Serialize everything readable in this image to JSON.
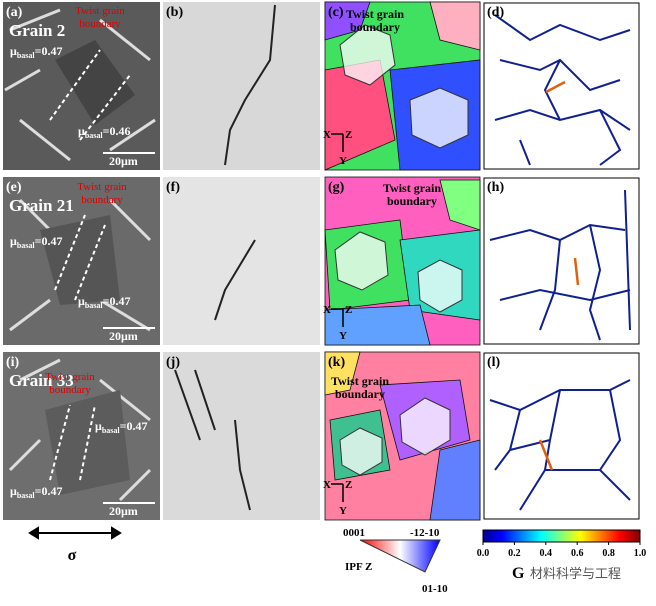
{
  "panels": [
    {
      "label": "(a)",
      "grain": "Grain 2",
      "boundary": [
        "Twist grain",
        "boundary"
      ],
      "mu": [
        {
          "symbol": "μ",
          "sub": "basal",
          "text": "=0.47"
        },
        {
          "symbol": "μ",
          "sub": "basal",
          "text": "=0.46"
        }
      ],
      "scale": "20μm"
    },
    {
      "label": "(b)"
    },
    {
      "label": "(c)",
      "boundary": [
        "Twist grain",
        "boundary"
      ],
      "axes": {
        "x": "X",
        "z": "Z",
        "y": "Y"
      }
    },
    {
      "label": "(d)"
    },
    {
      "label": "(e)",
      "grain": "Grain 21",
      "boundary": [
        "Twist grain",
        "boundary"
      ],
      "mu": [
        {
          "symbol": "μ",
          "sub": "basal",
          "text": "=0.47"
        },
        {
          "symbol": "μ",
          "sub": "basal",
          "text": "=0.47"
        }
      ],
      "scale": "20μm"
    },
    {
      "label": "(f)"
    },
    {
      "label": "(g)",
      "boundary": [
        "Twist grain",
        "boundary"
      ],
      "axes": {
        "x": "X",
        "z": "Z",
        "y": "Y"
      }
    },
    {
      "label": "(h)"
    },
    {
      "label": "(i)",
      "grain": "Grain 33",
      "boundary": [
        "Twist grain",
        "boundary"
      ],
      "mu": [
        {
          "symbol": "μ",
          "sub": "basal",
          "text": "=0.47"
        },
        {
          "symbol": "μ",
          "sub": "basal",
          "text": "=0.47"
        }
      ],
      "scale": "20μm"
    },
    {
      "label": "(j)"
    },
    {
      "label": "(k)",
      "boundary": [
        "Twist grain",
        "boundary"
      ],
      "axes": {
        "x": "X",
        "z": "Z",
        "y": "Y"
      }
    },
    {
      "label": "(l)"
    }
  ],
  "stress": "σ",
  "ipf": {
    "top_left": "0001",
    "top_right": "-12-10",
    "bottom": "01-10",
    "title": "IPF Z"
  },
  "colorbar": {
    "lim": [
      0,
      1
    ],
    "ticks": [
      {
        "value": 0,
        "label": "0.0"
      },
      {
        "value": 0.2,
        "label": "0.2"
      },
      {
        "value": 0.4,
        "label": "0.4"
      },
      {
        "value": 0.6,
        "label": "0.6"
      },
      {
        "value": 0.8,
        "label": "0.8"
      },
      {
        "value": 1,
        "label": "1.0"
      }
    ],
    "label": "G"
  },
  "watermark": "材料科学与工程"
}
